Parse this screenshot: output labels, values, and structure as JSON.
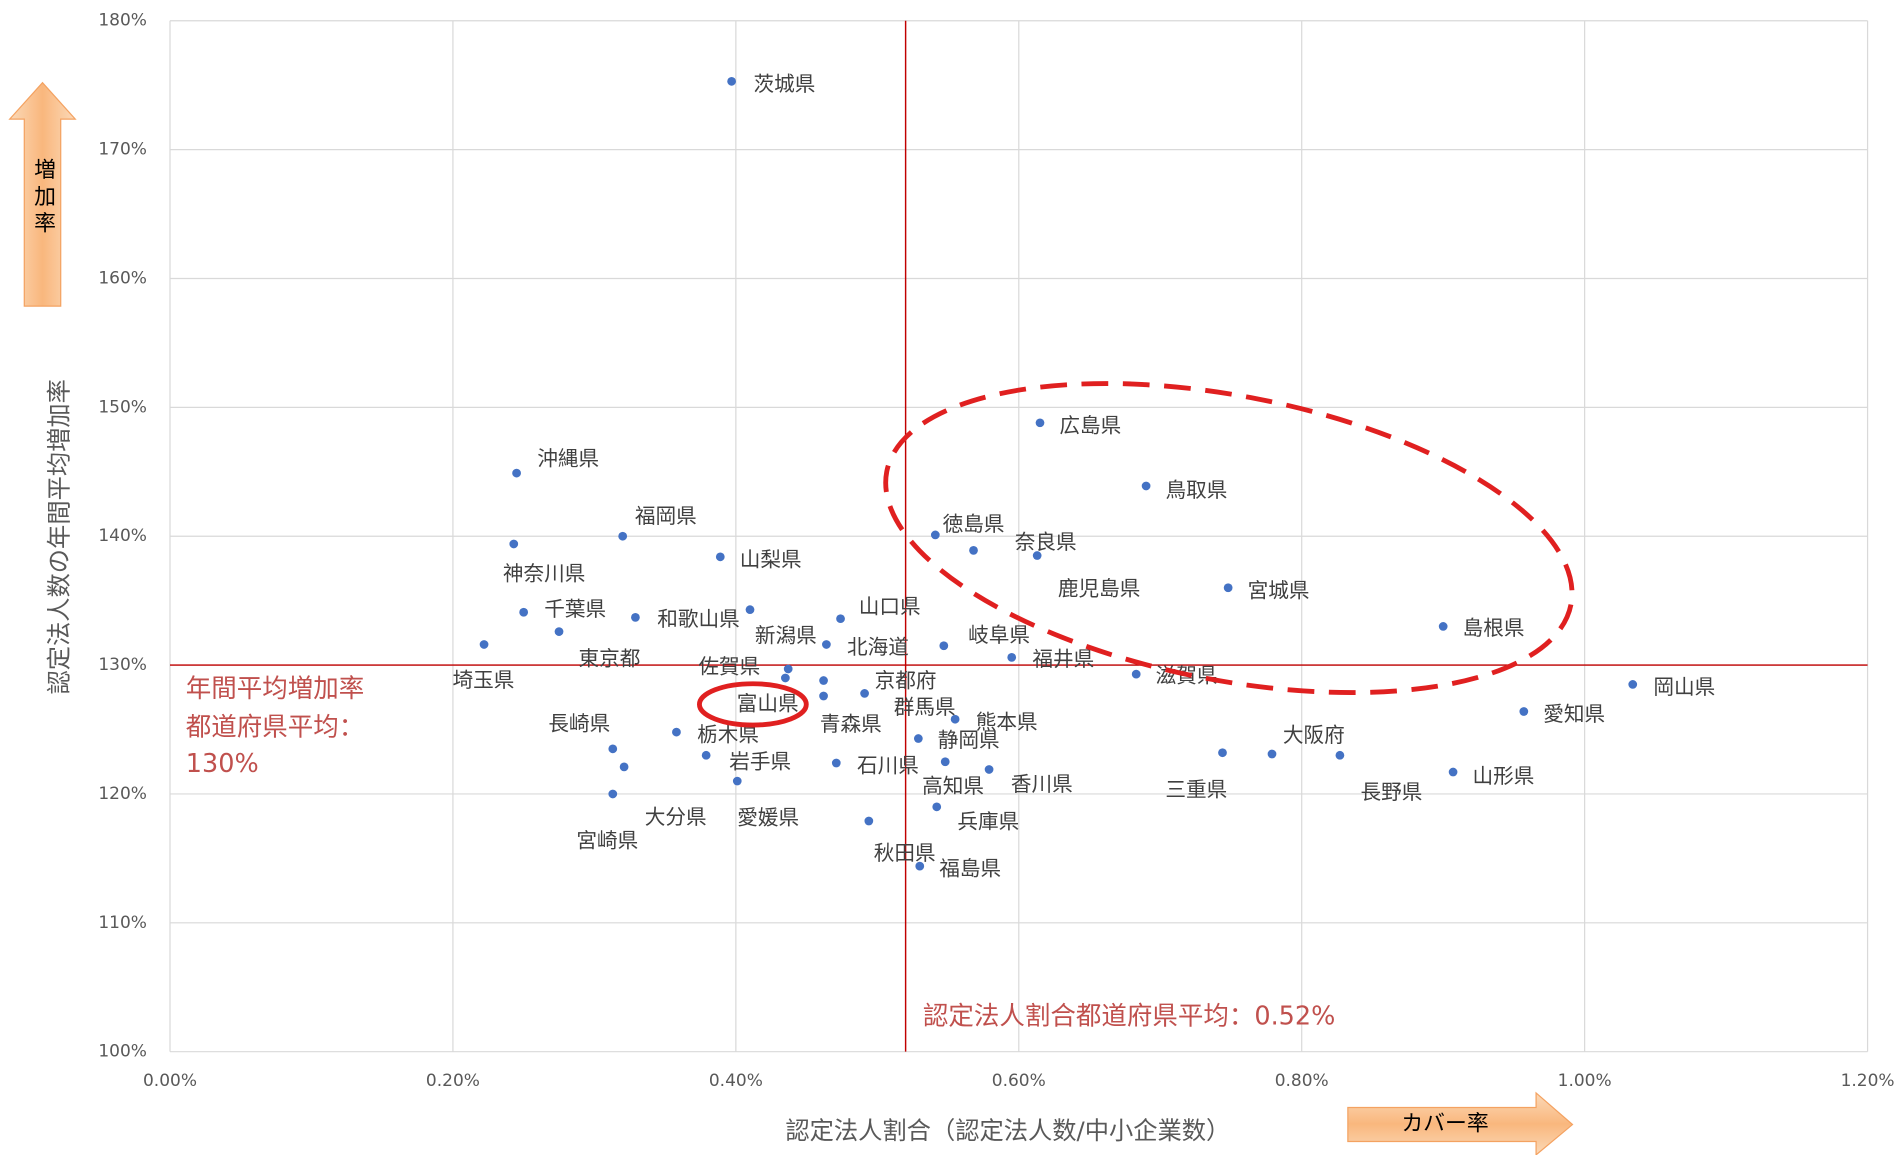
{
  "chart_data": {
    "type": "scatter",
    "x_label": "認定法人割合（認定法人数/中小企業数）",
    "y_label": "認定法人数の年間平均増加率",
    "color": "#4472c4",
    "grid": true,
    "xlim": [
      0,
      1.2
    ],
    "ylim": [
      100,
      180
    ],
    "xticks": [
      {
        "value": 0,
        "label": "0.00%"
      },
      {
        "value": 0.2,
        "label": "0.20%"
      },
      {
        "value": 0.4,
        "label": "0.40%"
      },
      {
        "value": 0.6,
        "label": "0.60%"
      },
      {
        "value": 0.8,
        "label": "0.80%"
      },
      {
        "value": 1.0,
        "label": "1.00%"
      },
      {
        "value": 1.2,
        "label": "1.20%"
      }
    ],
    "yticks": [
      {
        "value": 100,
        "label": "100%"
      },
      {
        "value": 110,
        "label": "110%"
      },
      {
        "value": 120,
        "label": "120%"
      },
      {
        "value": 130,
        "label": "130%"
      },
      {
        "value": 140,
        "label": "140%"
      },
      {
        "value": 150,
        "label": "150%"
      },
      {
        "value": 160,
        "label": "160%"
      },
      {
        "value": 170,
        "label": "170%"
      },
      {
        "value": 180,
        "label": "180%"
      }
    ],
    "reference_lines": {
      "x": 0.52,
      "y": 130,
      "color": "#c00000"
    },
    "labels": [
      "茨城県",
      "広島県",
      "鳥取県",
      "沖縄県",
      "福岡県",
      "神奈川県",
      "山梨県",
      "徳島県",
      "奈良県",
      "鹿児島県",
      "宮城県",
      "島根県",
      "千葉県",
      "和歌山県",
      "山口県",
      "新潟県",
      "北海道",
      "東京都",
      "埼玉県",
      "岐阜県",
      "福井県",
      "滋賀県",
      "岡山県",
      "佐賀県",
      "京都府",
      "富山県",
      "群馬県",
      "青森県",
      "熊本県",
      "愛知県",
      "長崎県",
      "栃木県",
      "静岡県",
      "大阪府",
      "三重県",
      "長野県",
      "山形県",
      "岩手県",
      "石川県",
      "高知県",
      "香川県",
      "大分県",
      "愛媛県",
      "兵庫県",
      "宮崎県",
      "秋田県",
      "福島県"
    ],
    "x": [
      0.397,
      0.615,
      0.69,
      0.245,
      0.32,
      0.243,
      0.389,
      0.541,
      0.568,
      0.613,
      0.748,
      0.9,
      0.25,
      0.329,
      0.474,
      0.41,
      0.464,
      0.275,
      0.222,
      0.547,
      0.595,
      0.683,
      1.034,
      0.437,
      0.462,
      0.435,
      0.491,
      0.462,
      0.555,
      0.957,
      0.313,
      0.358,
      0.529,
      0.779,
      0.744,
      0.827,
      0.907,
      0.379,
      0.471,
      0.548,
      0.579,
      0.321,
      0.401,
      0.542,
      0.313,
      0.494,
      0.53
    ],
    "values": [
      175.3,
      148.8,
      143.9,
      144.9,
      140.0,
      139.4,
      138.4,
      140.1,
      138.9,
      138.5,
      136.0,
      133.0,
      134.1,
      133.7,
      133.6,
      134.3,
      131.6,
      132.6,
      131.6,
      131.5,
      130.6,
      129.3,
      128.5,
      129.7,
      128.8,
      129.0,
      127.8,
      127.6,
      125.8,
      126.4,
      123.5,
      124.8,
      124.3,
      123.1,
      123.2,
      123.0,
      121.7,
      123.0,
      122.4,
      122.5,
      121.9,
      122.1,
      121.0,
      119.0,
      120.0,
      117.9,
      114.4
    ],
    "annotations": {
      "mean_y": [
        "年間平均増加率",
        "都道府県平均：",
        "130%"
      ],
      "mean_x": "認定法人割合都道府県平均：0.52%"
    },
    "arrows": {
      "y": "増加率",
      "x": "カバー率"
    }
  }
}
